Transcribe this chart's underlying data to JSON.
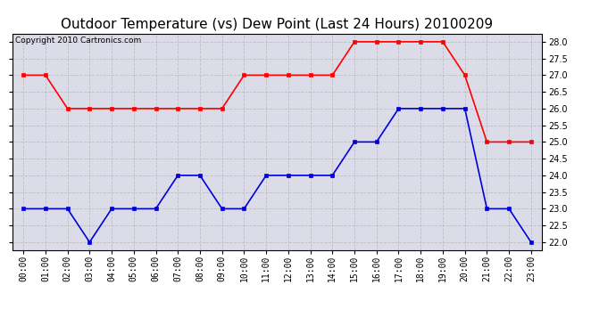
{
  "title": "Outdoor Temperature (vs) Dew Point (Last 24 Hours) 20100209",
  "copyright": "Copyright 2010 Cartronics.com",
  "hours": [
    "00:00",
    "01:00",
    "02:00",
    "03:00",
    "04:00",
    "05:00",
    "06:00",
    "07:00",
    "08:00",
    "09:00",
    "10:00",
    "11:00",
    "12:00",
    "13:00",
    "14:00",
    "15:00",
    "16:00",
    "17:00",
    "18:00",
    "19:00",
    "20:00",
    "21:00",
    "22:00",
    "23:00"
  ],
  "temp_red": [
    27.0,
    27.0,
    26.0,
    26.0,
    26.0,
    26.0,
    26.0,
    26.0,
    26.0,
    26.0,
    27.0,
    27.0,
    27.0,
    27.0,
    27.0,
    28.0,
    28.0,
    28.0,
    28.0,
    28.0,
    27.0,
    25.0,
    25.0,
    25.0
  ],
  "temp_blue": [
    23.0,
    23.0,
    23.0,
    22.0,
    23.0,
    23.0,
    23.0,
    24.0,
    24.0,
    23.0,
    23.0,
    24.0,
    24.0,
    24.0,
    24.0,
    25.0,
    25.0,
    26.0,
    26.0,
    26.0,
    26.0,
    23.0,
    23.0,
    22.0
  ],
  "ylim": [
    21.75,
    28.25
  ],
  "yticks": [
    22.0,
    22.5,
    23.0,
    23.5,
    24.0,
    24.5,
    25.0,
    25.5,
    26.0,
    26.5,
    27.0,
    27.5,
    28.0
  ],
  "red_color": "#ff0000",
  "blue_color": "#0000dd",
  "bg_color": "#ffffff",
  "plot_bg_color": "#dcdce8",
  "grid_color": "#bbbbbb",
  "title_fontsize": 11,
  "copyright_fontsize": 6.5,
  "tick_fontsize": 7,
  "marker_size": 3
}
